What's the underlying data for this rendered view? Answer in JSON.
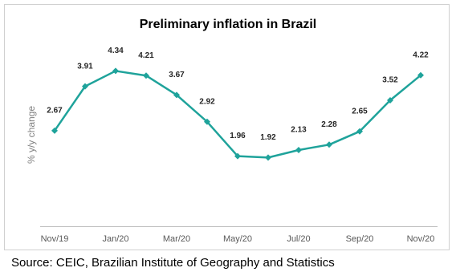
{
  "chart_data": {
    "type": "line",
    "title": "Preliminary inflation in Brazil",
    "y_label": "% y/y change",
    "categories": [
      "Nov/19",
      null,
      "Jan/20",
      null,
      "Mar/20",
      null,
      "May/20",
      null,
      "Jul/20",
      null,
      "Sep/20",
      null,
      "Nov/20"
    ],
    "series": [
      {
        "name": "Preliminary inflation",
        "color": "#1fa39b",
        "values": [
          2.67,
          3.91,
          4.34,
          4.21,
          3.67,
          2.92,
          1.96,
          1.92,
          2.13,
          2.28,
          2.65,
          3.52,
          4.22
        ]
      }
    ],
    "ylim": [
      0,
      5
    ],
    "grid": false,
    "source": "Source: CEIC, Brazilian Institute of Geography and Statistics"
  }
}
